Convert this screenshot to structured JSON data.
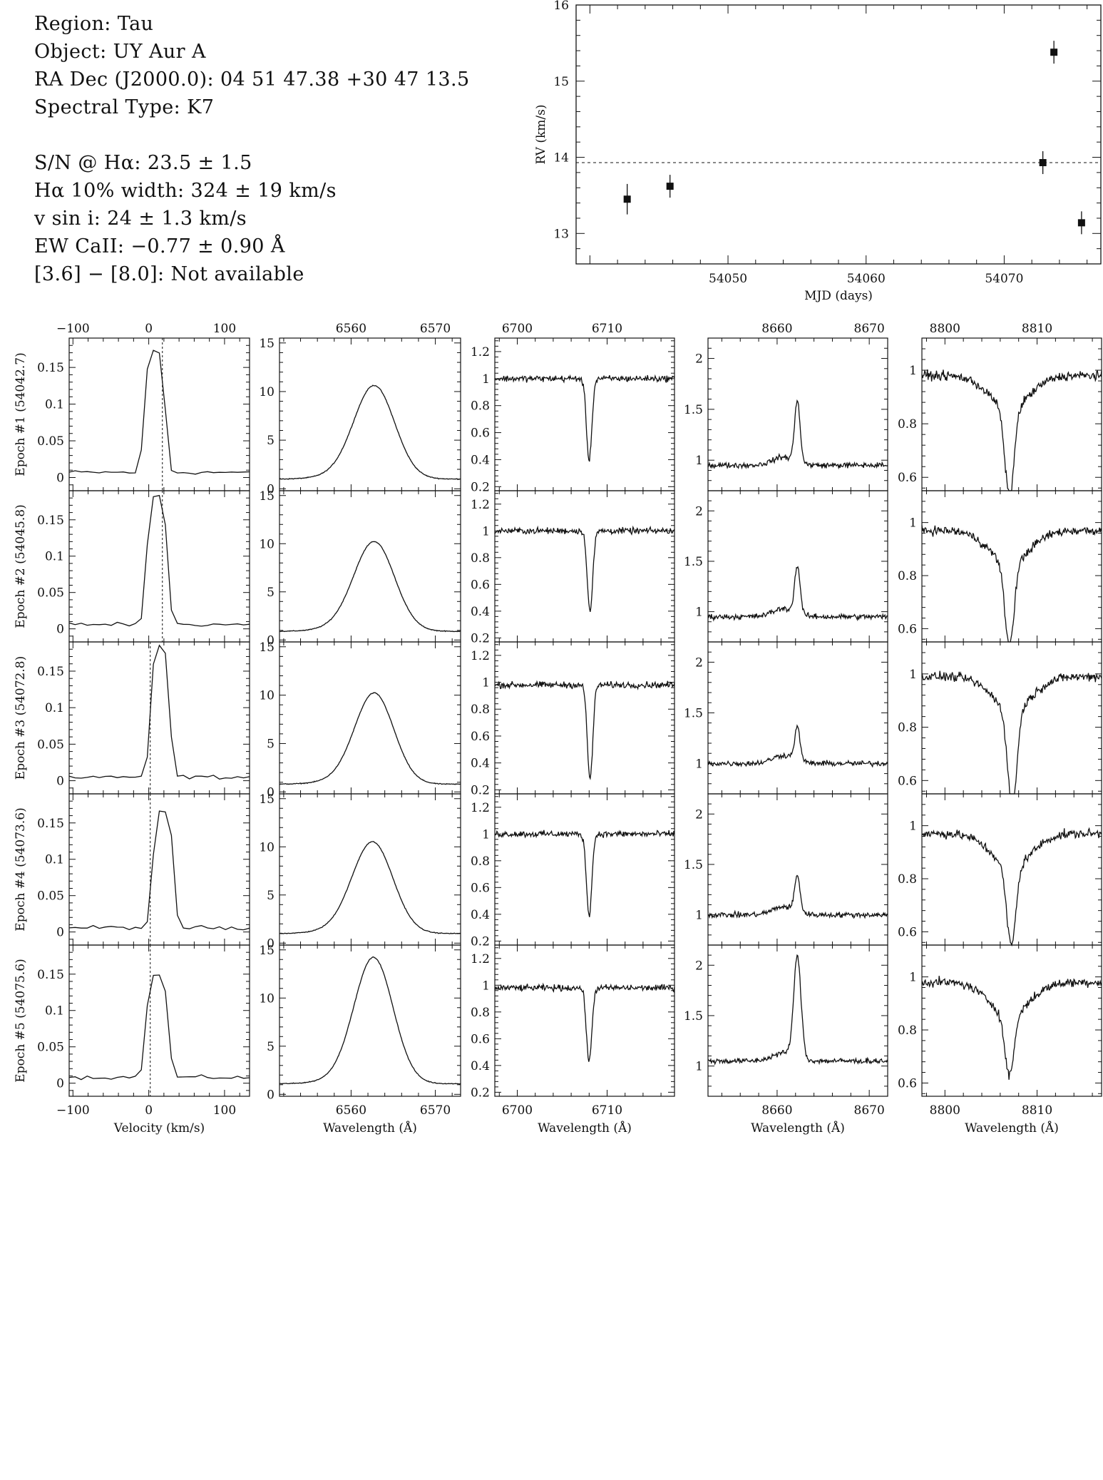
{
  "info": {
    "region": "Region: Tau",
    "object": "Object: UY Aur A",
    "radec": "RA Dec (J2000.0): 04 51 47.38 +30 47 13.5",
    "sptype": "Spectral Type: K7",
    "sn": "S/N @ Hα: 23.5 ± 1.5",
    "ha_width": "Hα 10% width: 324 ± 19 km/s",
    "vsini": "v sin i: 24 ± 1.3 km/s",
    "ew_caii": "EW CaII: −0.77 ± 0.90 Å",
    "irac": "[3.6] − [8.0]: Not available"
  },
  "chart_data": [
    {
      "type": "scatter",
      "xlabel": "MJD (days)",
      "ylabel": "RV (km/s)",
      "xlim": [
        54039,
        54077
      ],
      "ylim": [
        12.6,
        16
      ],
      "xticks": [
        54050,
        54060,
        54070
      ],
      "yticks": [
        13,
        14,
        15,
        16
      ],
      "reference_line": 13.93,
      "points": [
        {
          "x": 54042.7,
          "y": 13.45,
          "err": 0.2
        },
        {
          "x": 54045.8,
          "y": 13.62,
          "err": 0.15
        },
        {
          "x": 54072.8,
          "y": 13.93,
          "err": 0.15
        },
        {
          "x": 54073.6,
          "y": 15.38,
          "err": 0.15
        },
        {
          "x": 54075.6,
          "y": 13.14,
          "err": 0.15
        }
      ]
    },
    {
      "type": "line",
      "grid_rows": 5,
      "epoch_labels": [
        "Epoch #1 (54042.7)",
        "Epoch #2 (54045.8)",
        "Epoch #3 (54072.8)",
        "Epoch #4 (54073.6)",
        "Epoch #5 (54075.6)"
      ],
      "epoch_markers": [
        18,
        18,
        2,
        2,
        2
      ],
      "columns": [
        {
          "xlabel": "Velocity (km/s)",
          "xlim": [
            -105,
            133
          ],
          "xticks": [
            -100,
            0,
            100
          ],
          "ylim": [
            -0.018,
            0.19
          ],
          "yticks": [
            0,
            0.05,
            0.1,
            0.15
          ],
          "profiles": [
            {
              "baseline": 0.007,
              "peak": 0.166,
              "center": 8,
              "width": 13
            },
            {
              "baseline": 0.006,
              "peak": 0.178,
              "center": 11,
              "width": 13
            },
            {
              "baseline": 0.005,
              "peak": 0.179,
              "center": 15,
              "width": 12
            },
            {
              "baseline": 0.006,
              "peak": 0.16,
              "center": 19,
              "width": 13
            },
            {
              "baseline": 0.008,
              "peak": 0.141,
              "center": 11,
              "width": 14
            }
          ]
        },
        {
          "xlabel": "Wavelength (Å)",
          "xlim": [
            6551.5,
            6573
          ],
          "xticks": [
            6560,
            6570
          ],
          "ylim": [
            -0.2,
            15.5
          ],
          "yticks": [
            0,
            5,
            10,
            15
          ],
          "profiles": [
            {
              "baseline": 1,
              "peak": 10.2,
              "center": 6562.8,
              "width": 2.4
            },
            {
              "baseline": 0.9,
              "peak": 9.8,
              "center": 6562.8,
              "width": 2.4
            },
            {
              "baseline": 0.8,
              "peak": 9.8,
              "center": 6562.8,
              "width": 2.3
            },
            {
              "baseline": 1,
              "peak": 10.1,
              "center": 6562.6,
              "width": 2.4
            },
            {
              "baseline": 1.1,
              "peak": 13.8,
              "center": 6562.7,
              "width": 2.3
            }
          ]
        },
        {
          "xlabel": "Wavelength (Å)",
          "xlim": [
            6697.5,
            6717.5
          ],
          "xticks": [
            6700,
            6710
          ],
          "ylim": [
            0.17,
            1.3
          ],
          "yticks": [
            0.2,
            0.4,
            0.6,
            0.8,
            1,
            1.2
          ],
          "profiles": [
            {
              "baseline": 1.0,
              "depth": 0.6,
              "center": 6708,
              "width": 0.3
            },
            {
              "baseline": 1.0,
              "depth": 0.6,
              "center": 6708.1,
              "width": 0.3
            },
            {
              "baseline": 0.98,
              "depth": 0.7,
              "center": 6708.1,
              "width": 0.3
            },
            {
              "baseline": 1.0,
              "depth": 0.6,
              "center": 6708,
              "width": 0.3
            },
            {
              "baseline": 0.98,
              "depth": 0.55,
              "center": 6708,
              "width": 0.3
            }
          ]
        },
        {
          "xlabel": "Wavelength (Å)",
          "xlim": [
            8652.5,
            8672
          ],
          "xticks": [
            8660,
            8670
          ],
          "ylim": [
            0.7,
            2.2
          ],
          "yticks": [
            1,
            1.5,
            2
          ],
          "profiles": [
            {
              "baseline": 0.95,
              "peak": 1.55,
              "center": 8662.2,
              "width": 0.3
            },
            {
              "baseline": 0.95,
              "peak": 1.42,
              "center": 8662.2,
              "width": 0.3
            },
            {
              "baseline": 1.0,
              "peak": 1.32,
              "center": 8662.2,
              "width": 0.3
            },
            {
              "baseline": 1.0,
              "peak": 1.35,
              "center": 8662.2,
              "width": 0.3
            },
            {
              "baseline": 1.05,
              "peak": 2.05,
              "center": 8662.2,
              "width": 0.4
            }
          ]
        },
        {
          "xlabel": "Wavelength (Å)",
          "xlim": [
            8797.5,
            8817
          ],
          "xticks": [
            8800,
            8810
          ],
          "ylim": [
            0.55,
            1.12
          ],
          "yticks": [
            0.6,
            0.8,
            1
          ],
          "profiles": [
            {
              "baseline": 0.98,
              "depth": 0.33,
              "center": 8807,
              "width": 0.5
            },
            {
              "baseline": 0.97,
              "depth": 0.31,
              "center": 8807,
              "width": 0.5
            },
            {
              "baseline": 0.99,
              "depth": 0.37,
              "center": 8807.3,
              "width": 0.5
            },
            {
              "baseline": 0.97,
              "depth": 0.3,
              "center": 8807.2,
              "width": 0.5
            },
            {
              "baseline": 0.98,
              "depth": 0.23,
              "center": 8807,
              "width": 0.5
            }
          ]
        }
      ]
    }
  ]
}
